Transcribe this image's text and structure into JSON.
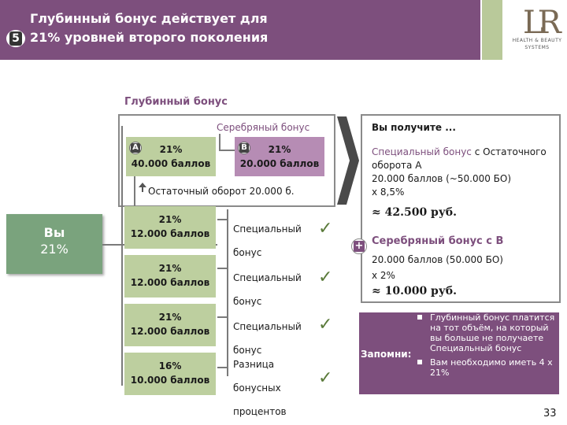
{
  "header": {
    "title_line1": "Глубинный бонус действует для",
    "title_line2": "21% уровней второго поколения",
    "slide_number": "5",
    "logo_mark": "LR",
    "logo_line1": "HEALTH & BEAUTY",
    "logo_line2": "SYSTEMS"
  },
  "tree": {
    "section_title": "Глубинный бонус",
    "silver_label": "Серебряный бонус",
    "box_a": {
      "letter": "A",
      "pct": "21%",
      "points": "40.000 баллов"
    },
    "box_b": {
      "letter": "B",
      "pct": "21%",
      "points": "20.000 баллов"
    },
    "residual_text": "Остаточный оборот 20.000 б.",
    "you": {
      "label": "Вы",
      "pct": "21%"
    },
    "levels": [
      {
        "pct": "21%",
        "points": "12.000 баллов",
        "bonus_line1": "Специальный",
        "bonus_line2": "бонус",
        "bonus_line3": ""
      },
      {
        "pct": "21%",
        "points": "12.000 баллов",
        "bonus_line1": "Специальный",
        "bonus_line2": "бонус",
        "bonus_line3": ""
      },
      {
        "pct": "21%",
        "points": "12.000 баллов",
        "bonus_line1": "Специальный",
        "bonus_line2": "бонус",
        "bonus_line3": ""
      },
      {
        "pct": "16%",
        "points": "10.000 баллов",
        "bonus_line1": "Разница",
        "bonus_line2": "бонусных",
        "bonus_line3": "процентов"
      }
    ],
    "check_glyph": "✓"
  },
  "panel": {
    "title": "Вы получите ...",
    "special_accent": "Специальный бонус",
    "special_rest": " с Остаточного оборота А",
    "special_line2": "20.000 баллов (~50.000 БО)",
    "special_line3": "x 8,5%",
    "special_total": "≈ 42.500 руб.",
    "plus": "+",
    "silver_title": "Серебряный бонус с В",
    "silver_line1": "20.000 баллов (50.000 БО)",
    "silver_line2": "x 2%",
    "silver_total": "≈ 10.000 руб."
  },
  "reminder": {
    "label": "Запомни:",
    "items": [
      "Глубинный бонус платится на тот объём, на который вы больше не получаете Специальный бонус",
      "Вам необходимо иметь 4 x 21%"
    ]
  },
  "page_number": "33",
  "colors": {
    "brand_purple": "#7d4f7d",
    "level_green": "#bdcf9f",
    "you_green": "#7aa37d",
    "b_purple": "#b68cb4"
  }
}
